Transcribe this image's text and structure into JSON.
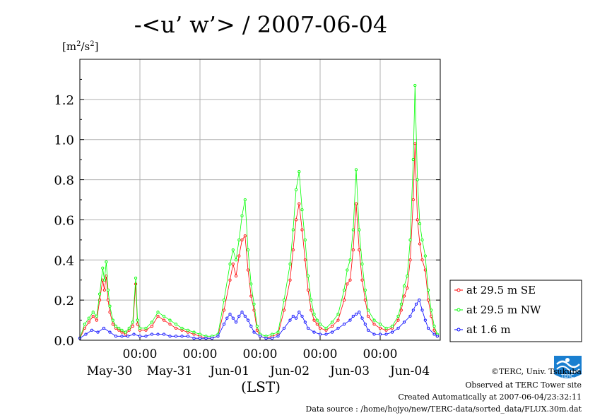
{
  "page": {
    "title": "-<u’ w’> / 2007-06-04",
    "y_unit_base": "[m",
    "y_unit_sup1": "2",
    "y_unit_mid": "/s",
    "y_unit_sup2": "2",
    "y_unit_end": "]",
    "x_unit": "(LST)",
    "footer": {
      "copyright": "©TERC, Univ. Tsukuba",
      "observed": "Observed at TERC Tower site",
      "created": "Created Automatically at 2007-06-04/23:32:11",
      "source": "Data source : /home/hojyo/new/TERC-data/sorted_data/FLUX.30m.dat"
    },
    "logo_text": "TERC"
  },
  "chart_data": {
    "type": "line",
    "title": "-<u’ w’> / 2007-06-04",
    "ylabel": "[m2/s2]",
    "xlabel": "(LST)",
    "ylim": [
      0,
      1.4
    ],
    "xlim": [
      0,
      6
    ],
    "x_units": "days since May-29 00:00 LST",
    "yticks": [
      {
        "value": 0.0,
        "label": "0.0"
      },
      {
        "value": 0.2,
        "label": "0.2"
      },
      {
        "value": 0.4,
        "label": "0.4"
      },
      {
        "value": 0.6,
        "label": "0.6"
      },
      {
        "value": 0.8,
        "label": "0.8"
      },
      {
        "value": 1.0,
        "label": "1.0"
      },
      {
        "value": 1.2,
        "label": "1.2"
      }
    ],
    "xticks": [
      {
        "value": 1,
        "time": "00:00",
        "date": "May-30"
      },
      {
        "value": 2,
        "time": "00:00",
        "date": "May-31"
      },
      {
        "value": 3,
        "time": "00:00",
        "date": "Jun-01"
      },
      {
        "value": 4,
        "time": "00:00",
        "date": "Jun-02"
      },
      {
        "value": 5,
        "time": "00:00",
        "date": "Jun-03"
      },
      {
        "value": 6,
        "time": "",
        "date": "Jun-04"
      }
    ],
    "grid": true,
    "legend_position": "right",
    "series": [
      {
        "name": "at 29.5 m SE",
        "color": "#ff0000",
        "points": [
          [
            0.0,
            0.01
          ],
          [
            0.08,
            0.06
          ],
          [
            0.15,
            0.09
          ],
          [
            0.22,
            0.12
          ],
          [
            0.28,
            0.1
          ],
          [
            0.33,
            0.2
          ],
          [
            0.38,
            0.3
          ],
          [
            0.41,
            0.25
          ],
          [
            0.44,
            0.32
          ],
          [
            0.47,
            0.2
          ],
          [
            0.5,
            0.14
          ],
          [
            0.55,
            0.08
          ],
          [
            0.6,
            0.06
          ],
          [
            0.65,
            0.05
          ],
          [
            0.7,
            0.04
          ],
          [
            0.76,
            0.03
          ],
          [
            0.82,
            0.05
          ],
          [
            0.88,
            0.07
          ],
          [
            0.93,
            0.28
          ],
          [
            0.96,
            0.08
          ],
          [
            1.0,
            0.05
          ],
          [
            1.1,
            0.05
          ],
          [
            1.2,
            0.07
          ],
          [
            1.3,
            0.12
          ],
          [
            1.4,
            0.1
          ],
          [
            1.5,
            0.08
          ],
          [
            1.6,
            0.06
          ],
          [
            1.7,
            0.05
          ],
          [
            1.8,
            0.04
          ],
          [
            1.9,
            0.03
          ],
          [
            2.0,
            0.02
          ],
          [
            2.1,
            0.01
          ],
          [
            2.2,
            0.01
          ],
          [
            2.3,
            0.02
          ],
          [
            2.4,
            0.15
          ],
          [
            2.5,
            0.3
          ],
          [
            2.55,
            0.38
          ],
          [
            2.6,
            0.32
          ],
          [
            2.65,
            0.42
          ],
          [
            2.7,
            0.5
          ],
          [
            2.75,
            0.52
          ],
          [
            2.8,
            0.35
          ],
          [
            2.85,
            0.22
          ],
          [
            2.9,
            0.15
          ],
          [
            2.95,
            0.05
          ],
          [
            3.0,
            0.02
          ],
          [
            3.1,
            0.01
          ],
          [
            3.2,
            0.02
          ],
          [
            3.3,
            0.03
          ],
          [
            3.4,
            0.15
          ],
          [
            3.5,
            0.3
          ],
          [
            3.55,
            0.45
          ],
          [
            3.6,
            0.6
          ],
          [
            3.65,
            0.68
          ],
          [
            3.7,
            0.55
          ],
          [
            3.75,
            0.4
          ],
          [
            3.8,
            0.25
          ],
          [
            3.85,
            0.15
          ],
          [
            3.9,
            0.1
          ],
          [
            3.95,
            0.08
          ],
          [
            4.0,
            0.06
          ],
          [
            4.1,
            0.05
          ],
          [
            4.2,
            0.07
          ],
          [
            4.3,
            0.1
          ],
          [
            4.4,
            0.2
          ],
          [
            4.45,
            0.28
          ],
          [
            4.5,
            0.3
          ],
          [
            4.55,
            0.45
          ],
          [
            4.6,
            0.68
          ],
          [
            4.65,
            0.45
          ],
          [
            4.7,
            0.3
          ],
          [
            4.75,
            0.2
          ],
          [
            4.8,
            0.12
          ],
          [
            4.9,
            0.08
          ],
          [
            5.0,
            0.06
          ],
          [
            5.1,
            0.05
          ],
          [
            5.2,
            0.06
          ],
          [
            5.3,
            0.1
          ],
          [
            5.35,
            0.15
          ],
          [
            5.4,
            0.22
          ],
          [
            5.45,
            0.26
          ],
          [
            5.5,
            0.4
          ],
          [
            5.55,
            0.7
          ],
          [
            5.58,
            0.98
          ],
          [
            5.62,
            0.6
          ],
          [
            5.66,
            0.48
          ],
          [
            5.7,
            0.4
          ],
          [
            5.75,
            0.35
          ],
          [
            5.8,
            0.2
          ],
          [
            5.85,
            0.12
          ],
          [
            5.9,
            0.05
          ],
          [
            5.95,
            0.02
          ]
        ]
      },
      {
        "name": "at 29.5 m NW",
        "color": "#00ff00",
        "points": [
          [
            0.0,
            0.01
          ],
          [
            0.08,
            0.08
          ],
          [
            0.15,
            0.11
          ],
          [
            0.22,
            0.14
          ],
          [
            0.28,
            0.12
          ],
          [
            0.33,
            0.23
          ],
          [
            0.38,
            0.36
          ],
          [
            0.41,
            0.3
          ],
          [
            0.44,
            0.39
          ],
          [
            0.47,
            0.25
          ],
          [
            0.5,
            0.17
          ],
          [
            0.55,
            0.1
          ],
          [
            0.6,
            0.07
          ],
          [
            0.65,
            0.06
          ],
          [
            0.7,
            0.05
          ],
          [
            0.76,
            0.04
          ],
          [
            0.82,
            0.06
          ],
          [
            0.88,
            0.09
          ],
          [
            0.93,
            0.31
          ],
          [
            0.96,
            0.1
          ],
          [
            1.0,
            0.06
          ],
          [
            1.1,
            0.06
          ],
          [
            1.2,
            0.09
          ],
          [
            1.3,
            0.14
          ],
          [
            1.4,
            0.12
          ],
          [
            1.5,
            0.1
          ],
          [
            1.6,
            0.08
          ],
          [
            1.7,
            0.06
          ],
          [
            1.8,
            0.05
          ],
          [
            1.9,
            0.04
          ],
          [
            2.0,
            0.03
          ],
          [
            2.1,
            0.02
          ],
          [
            2.2,
            0.02
          ],
          [
            2.3,
            0.03
          ],
          [
            2.4,
            0.2
          ],
          [
            2.5,
            0.38
          ],
          [
            2.55,
            0.45
          ],
          [
            2.6,
            0.4
          ],
          [
            2.65,
            0.5
          ],
          [
            2.7,
            0.62
          ],
          [
            2.75,
            0.7
          ],
          [
            2.8,
            0.45
          ],
          [
            2.85,
            0.28
          ],
          [
            2.9,
            0.18
          ],
          [
            2.95,
            0.07
          ],
          [
            3.0,
            0.03
          ],
          [
            3.1,
            0.02
          ],
          [
            3.2,
            0.03
          ],
          [
            3.3,
            0.04
          ],
          [
            3.4,
            0.2
          ],
          [
            3.5,
            0.38
          ],
          [
            3.55,
            0.55
          ],
          [
            3.6,
            0.75
          ],
          [
            3.65,
            0.84
          ],
          [
            3.7,
            0.65
          ],
          [
            3.75,
            0.5
          ],
          [
            3.8,
            0.32
          ],
          [
            3.85,
            0.2
          ],
          [
            3.9,
            0.13
          ],
          [
            3.95,
            0.1
          ],
          [
            4.0,
            0.08
          ],
          [
            4.1,
            0.06
          ],
          [
            4.2,
            0.09
          ],
          [
            4.3,
            0.13
          ],
          [
            4.4,
            0.25
          ],
          [
            4.45,
            0.35
          ],
          [
            4.5,
            0.4
          ],
          [
            4.55,
            0.55
          ],
          [
            4.6,
            0.85
          ],
          [
            4.65,
            0.55
          ],
          [
            4.7,
            0.38
          ],
          [
            4.75,
            0.25
          ],
          [
            4.8,
            0.15
          ],
          [
            4.9,
            0.1
          ],
          [
            5.0,
            0.08
          ],
          [
            5.1,
            0.06
          ],
          [
            5.2,
            0.07
          ],
          [
            5.3,
            0.12
          ],
          [
            5.35,
            0.18
          ],
          [
            5.4,
            0.27
          ],
          [
            5.45,
            0.32
          ],
          [
            5.5,
            0.5
          ],
          [
            5.55,
            0.9
          ],
          [
            5.58,
            1.27
          ],
          [
            5.62,
            0.8
          ],
          [
            5.66,
            0.58
          ],
          [
            5.7,
            0.5
          ],
          [
            5.75,
            0.42
          ],
          [
            5.8,
            0.25
          ],
          [
            5.85,
            0.15
          ],
          [
            5.9,
            0.07
          ],
          [
            5.95,
            0.03
          ]
        ]
      },
      {
        "name": "at 1.6 m",
        "color": "#0000ff",
        "points": [
          [
            0.0,
            0.01
          ],
          [
            0.1,
            0.03
          ],
          [
            0.2,
            0.05
          ],
          [
            0.3,
            0.04
          ],
          [
            0.4,
            0.06
          ],
          [
            0.5,
            0.04
          ],
          [
            0.6,
            0.02
          ],
          [
            0.7,
            0.02
          ],
          [
            0.8,
            0.02
          ],
          [
            0.9,
            0.03
          ],
          [
            1.0,
            0.02
          ],
          [
            1.1,
            0.02
          ],
          [
            1.2,
            0.03
          ],
          [
            1.3,
            0.03
          ],
          [
            1.4,
            0.03
          ],
          [
            1.5,
            0.02
          ],
          [
            1.6,
            0.02
          ],
          [
            1.7,
            0.02
          ],
          [
            1.8,
            0.02
          ],
          [
            1.9,
            0.01
          ],
          [
            2.0,
            0.01
          ],
          [
            2.1,
            0.01
          ],
          [
            2.2,
            0.01
          ],
          [
            2.3,
            0.02
          ],
          [
            2.4,
            0.08
          ],
          [
            2.45,
            0.11
          ],
          [
            2.5,
            0.13
          ],
          [
            2.55,
            0.11
          ],
          [
            2.6,
            0.09
          ],
          [
            2.65,
            0.12
          ],
          [
            2.7,
            0.14
          ],
          [
            2.75,
            0.12
          ],
          [
            2.8,
            0.1
          ],
          [
            2.85,
            0.07
          ],
          [
            2.9,
            0.04
          ],
          [
            3.0,
            0.02
          ],
          [
            3.1,
            0.01
          ],
          [
            3.2,
            0.01
          ],
          [
            3.3,
            0.02
          ],
          [
            3.4,
            0.06
          ],
          [
            3.5,
            0.1
          ],
          [
            3.55,
            0.12
          ],
          [
            3.6,
            0.11
          ],
          [
            3.65,
            0.14
          ],
          [
            3.7,
            0.12
          ],
          [
            3.75,
            0.09
          ],
          [
            3.8,
            0.06
          ],
          [
            3.9,
            0.04
          ],
          [
            4.0,
            0.03
          ],
          [
            4.1,
            0.03
          ],
          [
            4.2,
            0.04
          ],
          [
            4.3,
            0.06
          ],
          [
            4.4,
            0.08
          ],
          [
            4.5,
            0.1
          ],
          [
            4.55,
            0.12
          ],
          [
            4.6,
            0.13
          ],
          [
            4.65,
            0.14
          ],
          [
            4.7,
            0.11
          ],
          [
            4.75,
            0.08
          ],
          [
            4.8,
            0.05
          ],
          [
            4.9,
            0.03
          ],
          [
            5.0,
            0.03
          ],
          [
            5.1,
            0.03
          ],
          [
            5.2,
            0.04
          ],
          [
            5.3,
            0.06
          ],
          [
            5.4,
            0.09
          ],
          [
            5.5,
            0.12
          ],
          [
            5.55,
            0.15
          ],
          [
            5.6,
            0.18
          ],
          [
            5.65,
            0.2
          ],
          [
            5.7,
            0.15
          ],
          [
            5.75,
            0.1
          ],
          [
            5.8,
            0.06
          ],
          [
            5.9,
            0.03
          ],
          [
            5.95,
            0.02
          ]
        ]
      }
    ]
  }
}
